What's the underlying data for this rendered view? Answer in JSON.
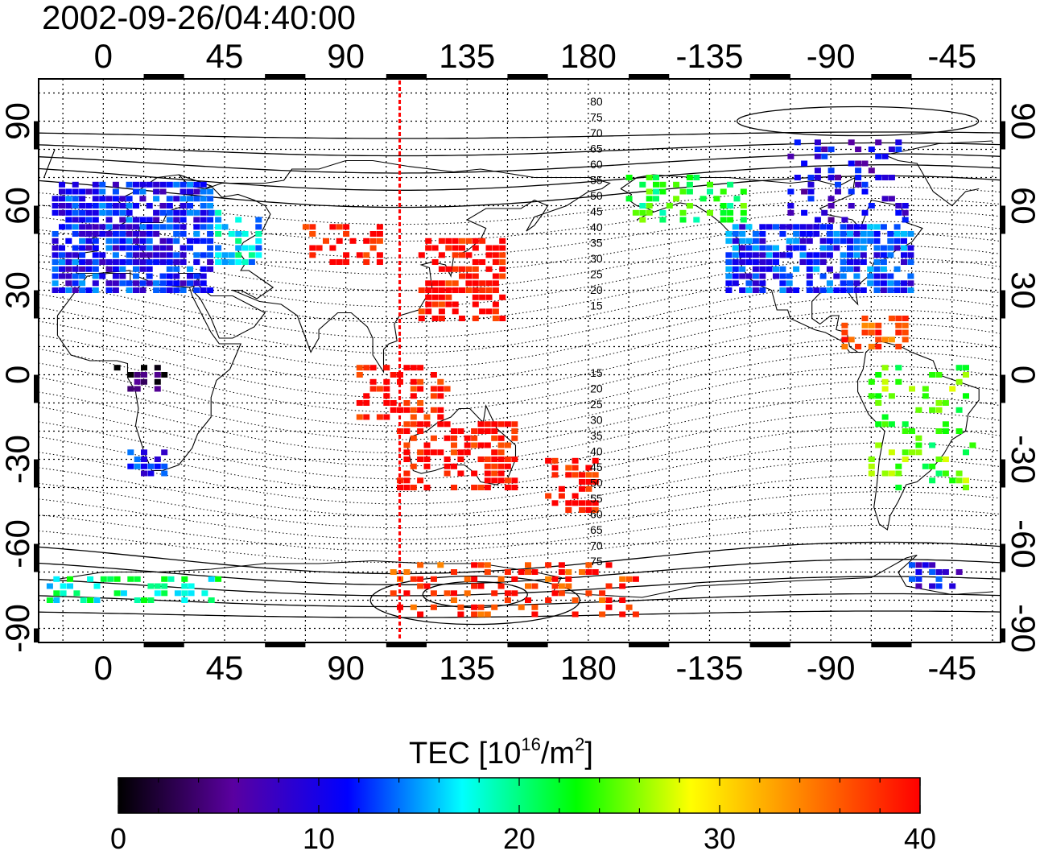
{
  "title": "2002-09-26/04:40:00",
  "lon_labels": [
    "0",
    "45",
    "90",
    "135",
    "180",
    "-135",
    "-90",
    "-45"
  ],
  "lat_labels": [
    "90",
    "60",
    "30",
    "0",
    "-30",
    "-60",
    "-90"
  ],
  "mlat_labels_north": [
    "80",
    "75",
    "70",
    "65",
    "60",
    "55",
    "50",
    "45",
    "40",
    "35",
    "30",
    "25",
    "20",
    "15"
  ],
  "mlat_labels_south": [
    "15",
    "20",
    "25",
    "30",
    "35",
    "40",
    "45",
    "50",
    "55",
    "60",
    "65",
    "70",
    "75"
  ],
  "colorbar": {
    "title_main": "TEC  [10",
    "title_sup1": "16",
    "title_mid": "/m",
    "title_sup2": "2",
    "title_end": "]",
    "tick_labels": [
      "0",
      "10",
      "20",
      "30",
      "40"
    ],
    "min": 0,
    "max": 40,
    "stops": [
      "#000000",
      "#5a00a0",
      "#0000ff",
      "#00ffff",
      "#00ff00",
      "#ffff00",
      "#ff8000",
      "#ff0000"
    ]
  },
  "local_midnight_longitude": 110,
  "map": {
    "lon_min": -24,
    "lon_max": 333,
    "lat_min": -95,
    "lat_max": 105,
    "grid_lon_step": 15,
    "grid_lat_step": 10
  },
  "tec_regions": [
    {
      "lon_range": [
        -18,
        40
      ],
      "lat_range": [
        30,
        70
      ],
      "value": 11,
      "density": 0.8
    },
    {
      "lon_range": [
        40,
        60
      ],
      "lat_range": [
        40,
        60
      ],
      "value": 17,
      "density": 0.5
    },
    {
      "lon_range": [
        75,
        105
      ],
      "lat_range": [
        40,
        55
      ],
      "value": 40,
      "density": 0.35
    },
    {
      "lon_range": [
        118,
        150
      ],
      "lat_range": [
        20,
        48
      ],
      "value": 40,
      "density": 0.6
    },
    {
      "lon_range": [
        95,
        130
      ],
      "lat_range": [
        -15,
        5
      ],
      "value": 40,
      "density": 0.4
    },
    {
      "lon_range": [
        110,
        155
      ],
      "lat_range": [
        -40,
        -15
      ],
      "value": 40,
      "density": 0.45
    },
    {
      "lon_range": [
        165,
        185
      ],
      "lat_range": [
        -48,
        -30
      ],
      "value": 40,
      "density": 0.5
    },
    {
      "lon_range": [
        232,
        300
      ],
      "lat_range": [
        30,
        55
      ],
      "value": 12,
      "density": 0.75
    },
    {
      "lon_range": [
        255,
        300
      ],
      "lat_range": [
        55,
        85
      ],
      "value": 9,
      "density": 0.3
    },
    {
      "lon_range": [
        195,
        240
      ],
      "lat_range": [
        55,
        72
      ],
      "value": 22,
      "density": 0.4
    },
    {
      "lon_range": [
        285,
        325
      ],
      "lat_range": [
        -40,
        5
      ],
      "value": 24,
      "density": 0.25
    },
    {
      "lon_range": [
        10,
        25
      ],
      "lat_range": [
        -35,
        -25
      ],
      "value": 12,
      "density": 0.6
    },
    {
      "lon_range": [
        5,
        25
      ],
      "lat_range": [
        -5,
        5
      ],
      "value": 2,
      "density": 0.35
    },
    {
      "lon_range": [
        -20,
        45
      ],
      "lat_range": [
        -80,
        -70
      ],
      "value": 19,
      "density": 0.3
    },
    {
      "lon_range": [
        105,
        200
      ],
      "lat_range": [
        -85,
        -65
      ],
      "value": 38,
      "density": 0.3
    },
    {
      "lon_range": [
        275,
        300
      ],
      "lat_range": [
        10,
        22
      ],
      "value": 36,
      "density": 0.5
    },
    {
      "lon_range": [
        300,
        320
      ],
      "lat_range": [
        -75,
        -65
      ],
      "value": 10,
      "density": 0.4
    }
  ]
}
